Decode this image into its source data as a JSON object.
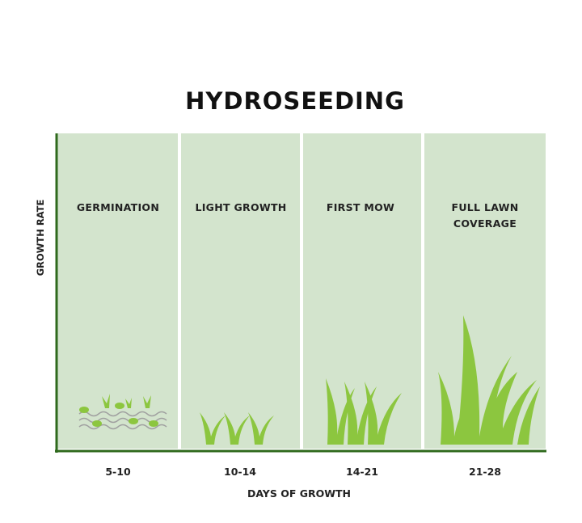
{
  "title": "HYDROSEEDING",
  "y_axis_label": "GROWTH RATE",
  "x_axis_label": "DAYS OF GROWTH",
  "stages": [
    {
      "label": "GERMINATION",
      "days": "5-10"
    },
    {
      "label": "LIGHT GROWTH",
      "days": "10-14"
    },
    {
      "label": "FIRST MOW",
      "days": "14-21"
    },
    {
      "label": "FULL LAWN COVERAGE",
      "days": "21-28"
    }
  ]
}
